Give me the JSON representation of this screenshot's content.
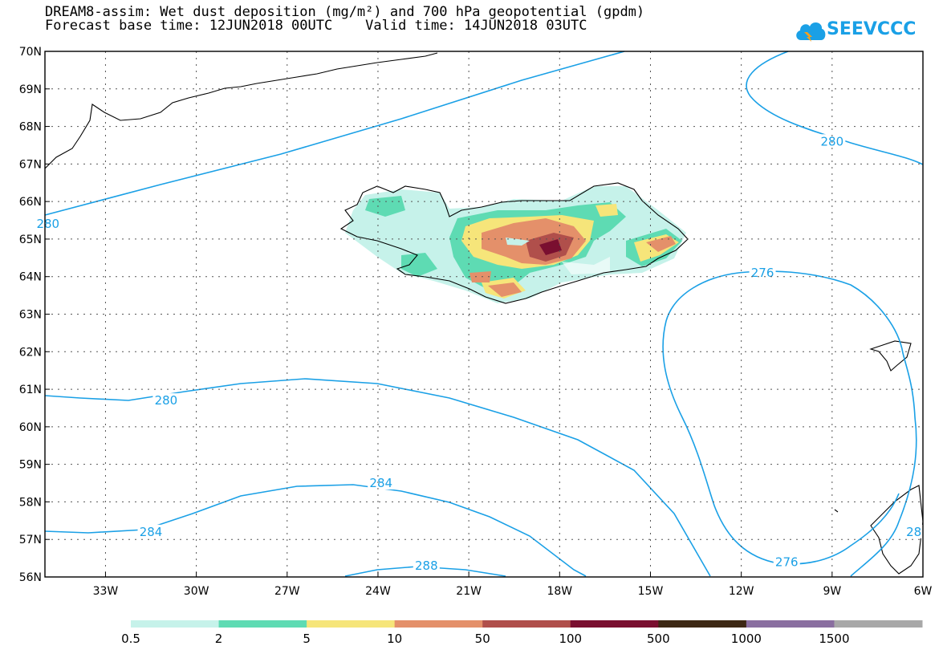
{
  "title": {
    "line1": "DREAM8-assim: Wet dust deposition (mg/m²) and 700 hPa geopotential (gpdm)",
    "line2": "Forecast base time: 12JUN2018 00UTC    Valid time: 14JUN2018 03UTC"
  },
  "logo": {
    "text": "SEEVCCC",
    "icon": "cloud-icon"
  },
  "map": {
    "lon_range": [
      -35,
      -6
    ],
    "lat_range": [
      56,
      70
    ],
    "lat_labels": [
      "70N",
      "69N",
      "68N",
      "67N",
      "66N",
      "65N",
      "64N",
      "63N",
      "62N",
      "61N",
      "60N",
      "59N",
      "58N",
      "57N",
      "56N"
    ],
    "lon_labels": [
      "33W",
      "30W",
      "27W",
      "24W",
      "21W",
      "18W",
      "15W",
      "12W",
      "9W",
      "6W"
    ],
    "contour_color": "#1aa0e6",
    "contour_labels": [
      {
        "text": "280",
        "lon": -34.9,
        "lat": 65.4
      },
      {
        "text": "280",
        "lon": -31.0,
        "lat": 60.7
      },
      {
        "text": "280",
        "lon": -9.0,
        "lat": 67.6
      },
      {
        "text": "284",
        "lon": -31.5,
        "lat": 57.2
      },
      {
        "text": "284",
        "lon": -23.9,
        "lat": 58.5
      },
      {
        "text": "288",
        "lon": -22.4,
        "lat": 56.3
      },
      {
        "text": "276",
        "lon": -11.3,
        "lat": 64.1
      },
      {
        "text": "276",
        "lon": -10.5,
        "lat": 56.4
      },
      {
        "text": "28",
        "lon": -6.3,
        "lat": 57.2
      }
    ]
  },
  "legend": {
    "colors": [
      "#c6f2ea",
      "#5edbb3",
      "#f6e57a",
      "#e4906a",
      "#b04f4b",
      "#7a0f30",
      "#3d2814",
      "#8a6fa0",
      "#a8a8a8"
    ],
    "labels": [
      "0.5",
      "2",
      "5",
      "10",
      "50",
      "100",
      "500",
      "1000",
      "1500"
    ]
  }
}
